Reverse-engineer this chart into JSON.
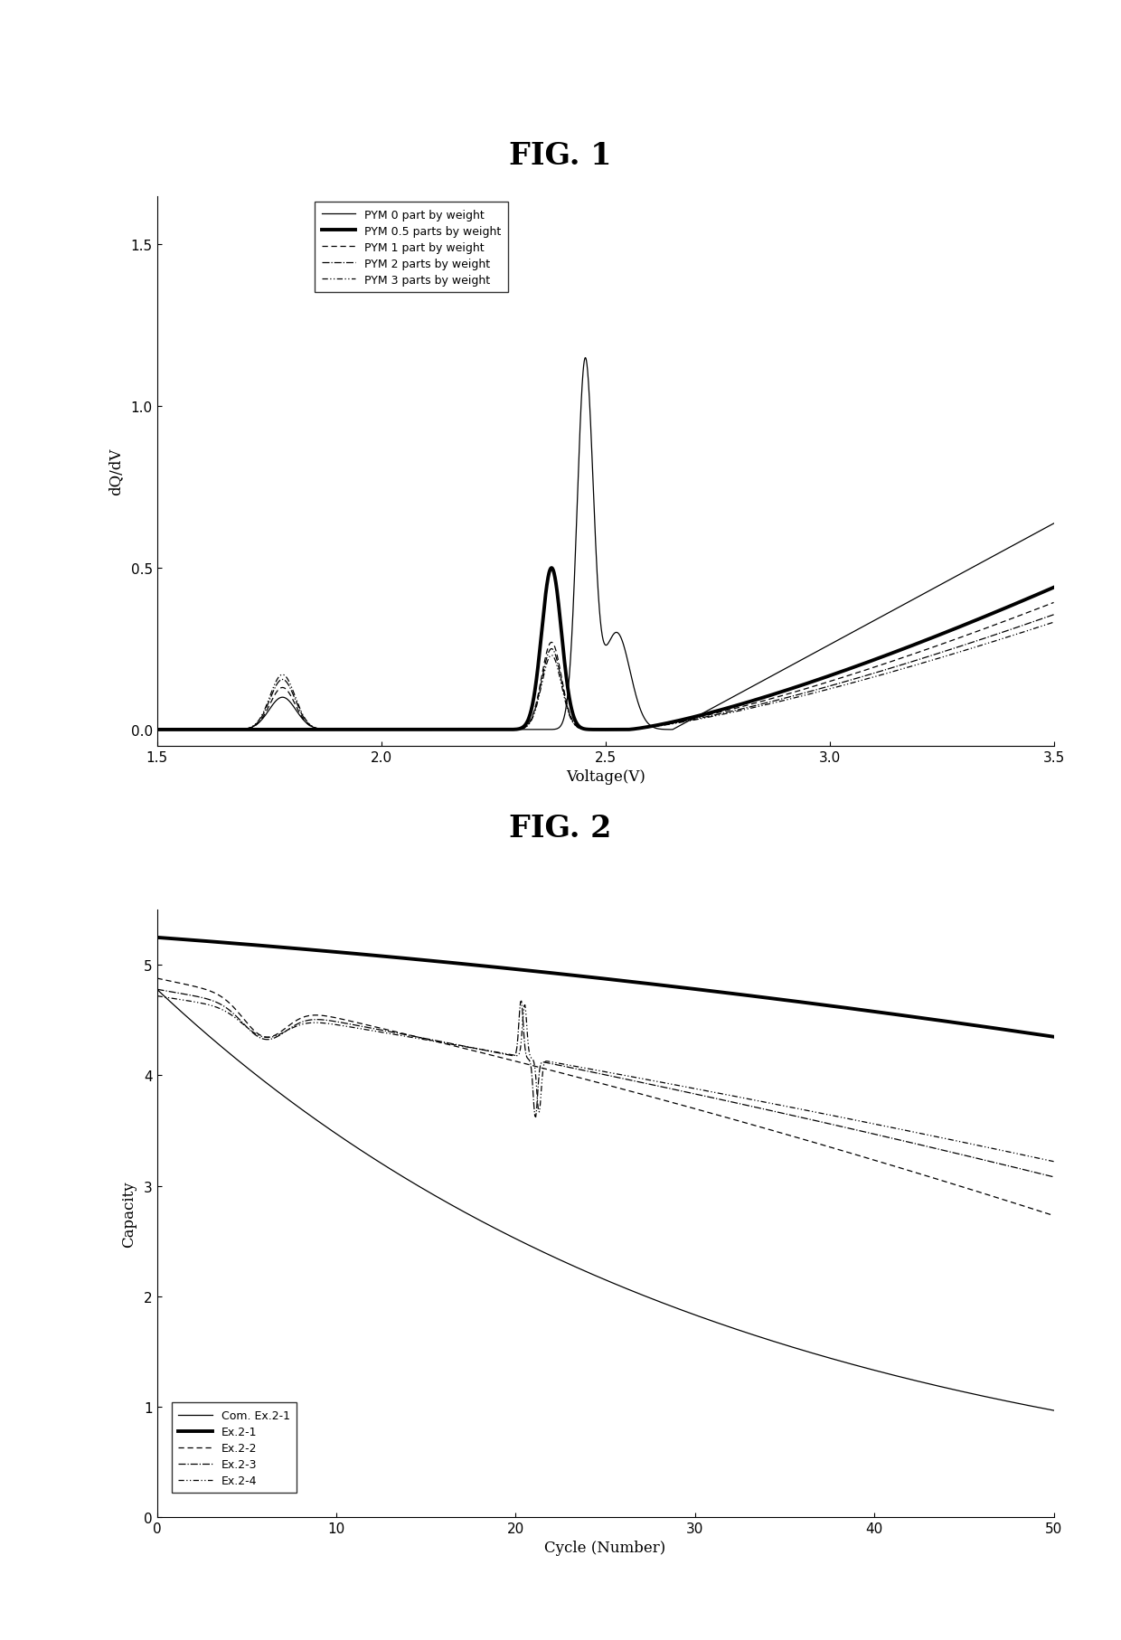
{
  "fig1_title": "FIG. 1",
  "fig2_title": "FIG. 2",
  "fig1_xlabel": "Voltage(V)",
  "fig1_ylabel": "dQ/dV",
  "fig2_xlabel": "Cycle (Number)",
  "fig2_ylabel": "Capacity",
  "fig1_xlim": [
    1.5,
    3.5
  ],
  "fig1_ylim": [
    -0.05,
    1.65
  ],
  "fig2_xlim": [
    0,
    50
  ],
  "fig2_ylim": [
    0,
    5.5
  ],
  "fig1_xticks": [
    1.5,
    2.0,
    2.5,
    3.0,
    3.5
  ],
  "fig1_yticks": [
    0.0,
    0.5,
    1.0,
    1.5
  ],
  "fig2_xticks": [
    0,
    10,
    20,
    30,
    40,
    50
  ],
  "fig2_yticks": [
    0,
    1,
    2,
    3,
    4,
    5
  ],
  "legend1": [
    "PYM 0 part by weight",
    "PYM 0.5 parts by weight",
    "PYM 1 part by weight",
    "PYM 2 parts by weight",
    "PYM 3 parts by weight"
  ],
  "legend2": [
    "Com. Ex.2-1",
    "Ex.2-1",
    "Ex.2-2",
    "Ex.2-3",
    "Ex.2-4"
  ]
}
